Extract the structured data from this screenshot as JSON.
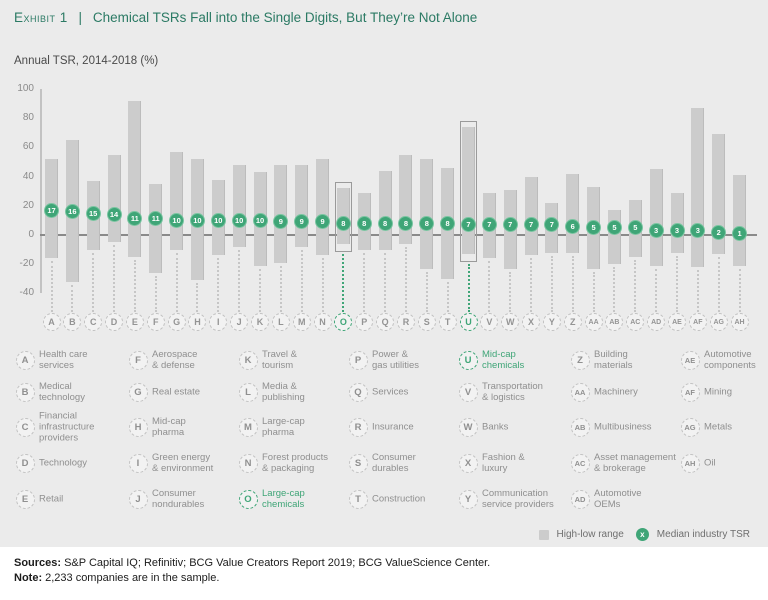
{
  "header": {
    "exhibit_label": "Exhibit 1",
    "separator": "|",
    "title": "Chemical TSRs Fall into the Single Digits, But They’re Not Alone",
    "subtitle": "Annual TSR, 2014-2018 (%)"
  },
  "chart_data": {
    "type": "bar",
    "subtype": "floating high-low range bars with median markers",
    "title": "Annual TSR, 2014-2018 (%)",
    "xlabel": "",
    "ylabel": "Annual TSR (%)",
    "ylim": [
      -40,
      100
    ],
    "yticks": [
      100,
      80,
      60,
      40,
      20,
      0,
      "-20",
      "-40"
    ],
    "grid": false,
    "legend_position": "bottom-right",
    "legend": [
      "High-low range",
      "Median industry TSR"
    ],
    "bars": [
      {
        "letter": "A",
        "name": "Health care\nservices",
        "high": 52,
        "low": -16,
        "median": 17,
        "highlighted": false
      },
      {
        "letter": "B",
        "name": "Medical\ntechnology",
        "high": 65,
        "low": -32,
        "median": 16,
        "highlighted": false
      },
      {
        "letter": "C",
        "name": "Financial\ninfrastructure\nproviders",
        "high": 37,
        "low": -10,
        "median": 15,
        "highlighted": false
      },
      {
        "letter": "D",
        "name": "Technology",
        "high": 55,
        "low": -5,
        "median": 14,
        "highlighted": false
      },
      {
        "letter": "E",
        "name": "Retail",
        "high": 92,
        "low": -15,
        "median": 11,
        "highlighted": false
      },
      {
        "letter": "F",
        "name": "Aerospace\n& defense",
        "high": 35,
        "low": -26,
        "median": 11,
        "highlighted": false
      },
      {
        "letter": "G",
        "name": "Real estate",
        "high": 57,
        "low": -10,
        "median": 10,
        "highlighted": false
      },
      {
        "letter": "H",
        "name": "Mid-cap\npharma",
        "high": 52,
        "low": -31,
        "median": 10,
        "highlighted": false
      },
      {
        "letter": "I",
        "name": "Green energy\n& environment",
        "high": 38,
        "low": -14,
        "median": 10,
        "highlighted": false
      },
      {
        "letter": "J",
        "name": "Consumer\nnondurables",
        "high": 48,
        "low": -8,
        "median": 10,
        "highlighted": false
      },
      {
        "letter": "K",
        "name": "Travel &\ntourism",
        "high": 43,
        "low": -21,
        "median": 10,
        "highlighted": false
      },
      {
        "letter": "L",
        "name": "Media &\npublishing",
        "high": 48,
        "low": -19,
        "median": 9,
        "highlighted": false
      },
      {
        "letter": "M",
        "name": "Large-cap\npharma",
        "high": 48,
        "low": -8,
        "median": 9,
        "highlighted": false
      },
      {
        "letter": "N",
        "name": "Forest products\n& packaging",
        "high": 52,
        "low": -14,
        "median": 9,
        "highlighted": false
      },
      {
        "letter": "O",
        "name": "Large-cap\nchemicals",
        "high": 32,
        "low": -6,
        "median": 8,
        "highlighted": true
      },
      {
        "letter": "P",
        "name": "Power &\ngas utilities",
        "high": 29,
        "low": -10,
        "median": 8,
        "highlighted": false
      },
      {
        "letter": "Q",
        "name": "Services",
        "high": 44,
        "low": -10,
        "median": 8,
        "highlighted": false
      },
      {
        "letter": "R",
        "name": "Insurance",
        "high": 55,
        "low": -6,
        "median": 8,
        "highlighted": false
      },
      {
        "letter": "S",
        "name": "Consumer\ndurables",
        "high": 52,
        "low": -23,
        "median": 8,
        "highlighted": false
      },
      {
        "letter": "T",
        "name": "Construction",
        "high": 46,
        "low": -30,
        "median": 8,
        "highlighted": false
      },
      {
        "letter": "U",
        "name": "Mid-cap\nchemicals",
        "high": 74,
        "low": -13,
        "median": 7,
        "highlighted": true
      },
      {
        "letter": "V",
        "name": "Transportation\n& logistics",
        "high": 29,
        "low": -16,
        "median": 7,
        "highlighted": false
      },
      {
        "letter": "W",
        "name": "Banks",
        "high": 31,
        "low": -23,
        "median": 7,
        "highlighted": false
      },
      {
        "letter": "X",
        "name": "Fashion &\nluxury",
        "high": 40,
        "low": -14,
        "median": 7,
        "highlighted": false
      },
      {
        "letter": "Y",
        "name": "Communication\nservice providers",
        "high": 22,
        "low": -12,
        "median": 7,
        "highlighted": false
      },
      {
        "letter": "Z",
        "name": "Building\nmaterials",
        "high": 42,
        "low": -12,
        "median": 6,
        "highlighted": false
      },
      {
        "letter": "AA",
        "name": "Machinery",
        "high": 33,
        "low": -23,
        "median": 5,
        "highlighted": false
      },
      {
        "letter": "AB",
        "name": "Multibusiness",
        "high": 17,
        "low": -20,
        "median": 5,
        "highlighted": false
      },
      {
        "letter": "AC",
        "name": "Asset management\n& brokerage",
        "high": 24,
        "low": -15,
        "median": 5,
        "highlighted": false
      },
      {
        "letter": "AD",
        "name": "Automotive\nOEMs",
        "high": 45,
        "low": -21,
        "median": 3,
        "highlighted": false
      },
      {
        "letter": "AE",
        "name": "Automotive\ncomponents",
        "high": 29,
        "low": -12,
        "median": 3,
        "highlighted": false
      },
      {
        "letter": "AF",
        "name": "Mining",
        "high": 87,
        "low": -22,
        "median": 3,
        "highlighted": false
      },
      {
        "letter": "AG",
        "name": "Metals",
        "high": 69,
        "low": -13,
        "median": 2,
        "highlighted": false
      },
      {
        "letter": "AH",
        "name": "Oil",
        "high": 41,
        "low": -21,
        "median": 1,
        "highlighted": false
      }
    ]
  },
  "series_legend": {
    "high_low_label": "High-low range",
    "median_label": "Median industry TSR",
    "median_symbol": "x"
  },
  "footer": {
    "sources_label": "Sources:",
    "sources_text": "S&P Capital IQ; Refinitiv; BCG Value Creators Report 2019; BCG ValueScience Center.",
    "note_label": "Note:",
    "note_text": "2,233 companies are in the sample."
  },
  "colors": {
    "accent_green": "#3fa577",
    "title_green": "#2b7a64",
    "bar_gray": "#cccccc",
    "background": "#ebebeb"
  }
}
